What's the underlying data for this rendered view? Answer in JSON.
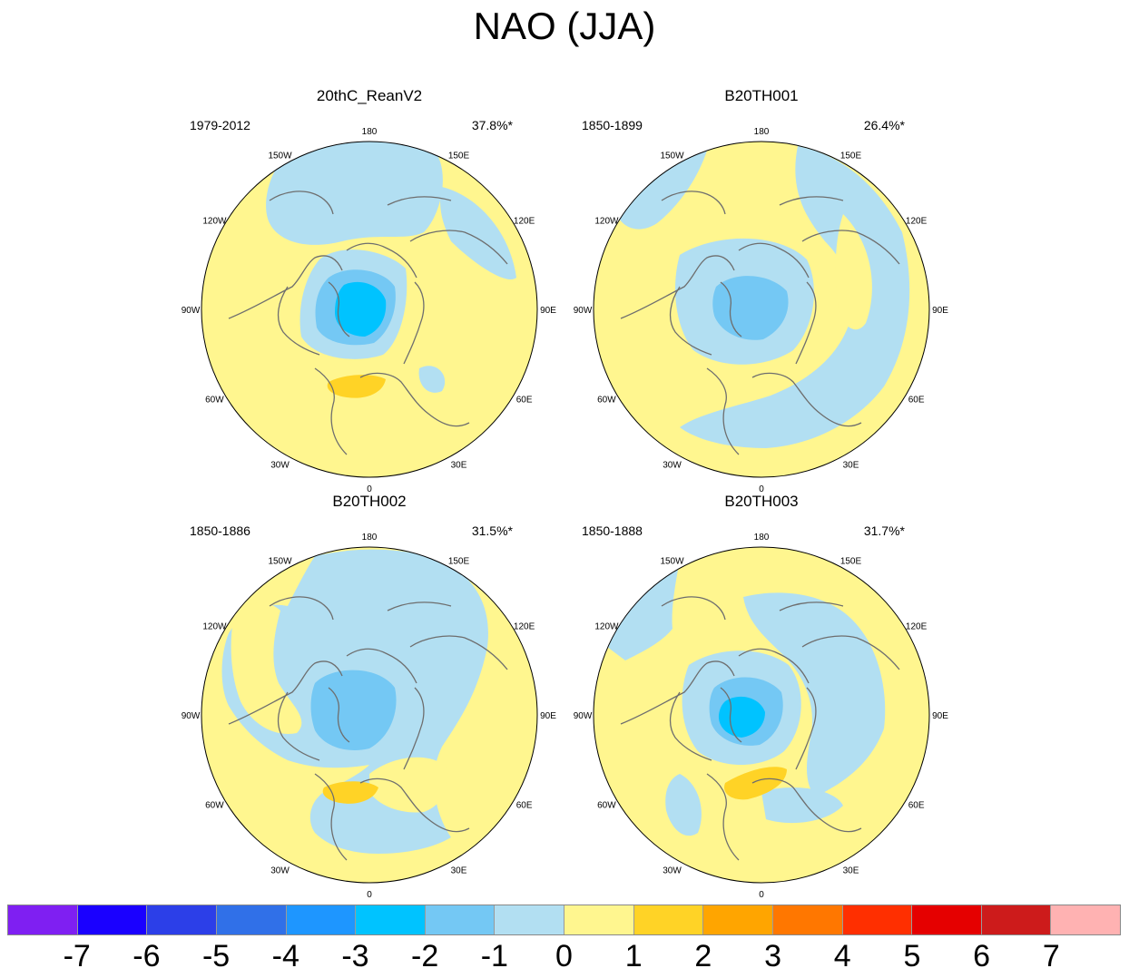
{
  "title": "NAO (JJA)",
  "longitude_labels": {
    "top": "180",
    "bottom": "0",
    "left": "90W",
    "right": "90E",
    "upper_left_1": "150W",
    "upper_left_2": "120W",
    "lower_left_1": "60W",
    "lower_left_2": "30W",
    "upper_right_1": "150E",
    "upper_right_2": "120E",
    "lower_right_1": "60E",
    "lower_right_2": "30E"
  },
  "panels": [
    {
      "name": "20thC_ReanV2",
      "years": "1979-2012",
      "variance_pct": "37.8%*"
    },
    {
      "name": "B20TH001",
      "years": "1850-1899",
      "variance_pct": "26.4%*"
    },
    {
      "name": "B20TH002",
      "years": "1850-1886",
      "variance_pct": "31.5%*"
    },
    {
      "name": "B20TH003",
      "years": "1850-1888",
      "variance_pct": "31.7%*"
    }
  ],
  "colorbar": {
    "colors": [
      "#7f1ff2",
      "#1a00ff",
      "#2c3fe8",
      "#3070e8",
      "#1e96ff",
      "#00c3ff",
      "#74c8f4",
      "#b2dff2",
      "#fff68f",
      "#ffd326",
      "#ffa500",
      "#ff7700",
      "#ff2f00",
      "#e50000",
      "#cd1b1b",
      "#ffb2b2"
    ],
    "ticks": [
      "-7",
      "-6",
      "-5",
      "-4",
      "-3",
      "-2",
      "-1",
      "0",
      "1",
      "2",
      "3",
      "4",
      "5",
      "6",
      "7"
    ]
  },
  "legend_colors": {
    "neutral_pos": "#fff68f",
    "neutral_neg": "#b2dff2",
    "pos1": "#ffd326",
    "neg2": "#74c8f4",
    "neg3": "#00c3ff",
    "coast": "#6e6e6e"
  }
}
